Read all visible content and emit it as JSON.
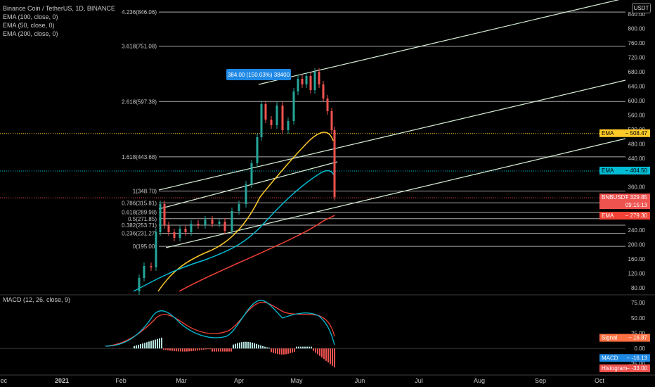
{
  "header": {
    "symbol_line": "Binance Coin / TetherUS, 1D, BINANCE",
    "indicators": [
      "EMA (100, close, 0)",
      "EMA (50, close, 0)",
      "EMA (200, close, 0)"
    ],
    "currency_button": "USDT"
  },
  "macd_legend": "MACD (12, 26, close, 9)",
  "colors": {
    "background": "#000000",
    "fib_line": "#c8c8c8",
    "channel_line": "#d6f0d6",
    "ema100": "#00bcd4",
    "ema50": "#ffca28",
    "ema200": "#f44336",
    "candle_up": "#26a69a",
    "candle_down": "#ef5350",
    "callout": "#1e88e5"
  },
  "chart_data": {
    "type": "candlestick",
    "title": "Binance Coin / TetherUS, 1D, BINANCE",
    "price_axis": {
      "ticks": [
        "840.00",
        "800.00",
        "760.00",
        "720.00",
        "680.00",
        "640.00",
        "600.00",
        "560.00",
        "520.00",
        "480.00",
        "440.00",
        "400.00",
        "360.00",
        "320.00",
        "280.00",
        "240.00",
        "200.00",
        "160.00",
        "120.00",
        "80.00"
      ],
      "range": [
        70,
        860
      ]
    },
    "time_axis": {
      "labels": [
        "Dec",
        "2021",
        "Feb",
        "Mar",
        "Apr",
        "May",
        "Jun",
        "Jul",
        "Aug",
        "Sep",
        "Oct"
      ]
    },
    "fib_levels": [
      {
        "label": "4.236(846.06)",
        "price": 846.06
      },
      {
        "label": "3.618(751.08)",
        "price": 751.08
      },
      {
        "label": "2.618(597.38)",
        "price": 597.38
      },
      {
        "label": "1.618(443.68)",
        "price": 443.68
      },
      {
        "label": "1(348.70)",
        "price": 348.7
      },
      {
        "label": "0.786(315.81)",
        "price": 315.81
      },
      {
        "label": "0.618(289.98)",
        "price": 289.98
      },
      {
        "label": "0.5(271.85)",
        "price": 271.85
      },
      {
        "label": "0.382(253.71)",
        "price": 253.71
      },
      {
        "label": "0.236(231.27)",
        "price": 231.27
      },
      {
        "label": "0(195.00)",
        "price": 195.0
      }
    ],
    "price_tags": [
      {
        "name": "EMA",
        "value": "508.47",
        "price": 508.47,
        "color": "#ffca28",
        "text_color": "#000000",
        "dotted": true
      },
      {
        "name": "EMA",
        "value": "404.50",
        "price": 404.5,
        "color": "#00bcd4",
        "text_color": "#000000",
        "dotted": true
      },
      {
        "name": "BNBUSDT",
        "value": "329.85",
        "price": 329.85,
        "color": "#ef5350",
        "text_color": "#ffffff",
        "sub": "09:15:13",
        "dotted": true
      },
      {
        "name": "EMA",
        "value": "279.30",
        "price": 279.3,
        "color": "#f44336",
        "text_color": "#ffffff",
        "dotted": false
      }
    ],
    "callout": "384.00 (150.03%) 38400",
    "macd": {
      "params": "MACD (12, 26, close, 9)",
      "axis_ticks": [
        "75.00",
        "50.00",
        "25.00",
        "0.00",
        "-25.00"
      ],
      "range": [
        -40,
        82
      ],
      "tags": [
        {
          "name": "Signal",
          "value": "16.87",
          "num": 16.87,
          "color": "#ff7043"
        },
        {
          "name": "MACD",
          "value": "-16.13",
          "num": -16.13,
          "color": "#1e88e5"
        },
        {
          "name": "Histogram",
          "value": "-33.00",
          "num": -33.0,
          "color": "#ef5350"
        }
      ]
    }
  }
}
